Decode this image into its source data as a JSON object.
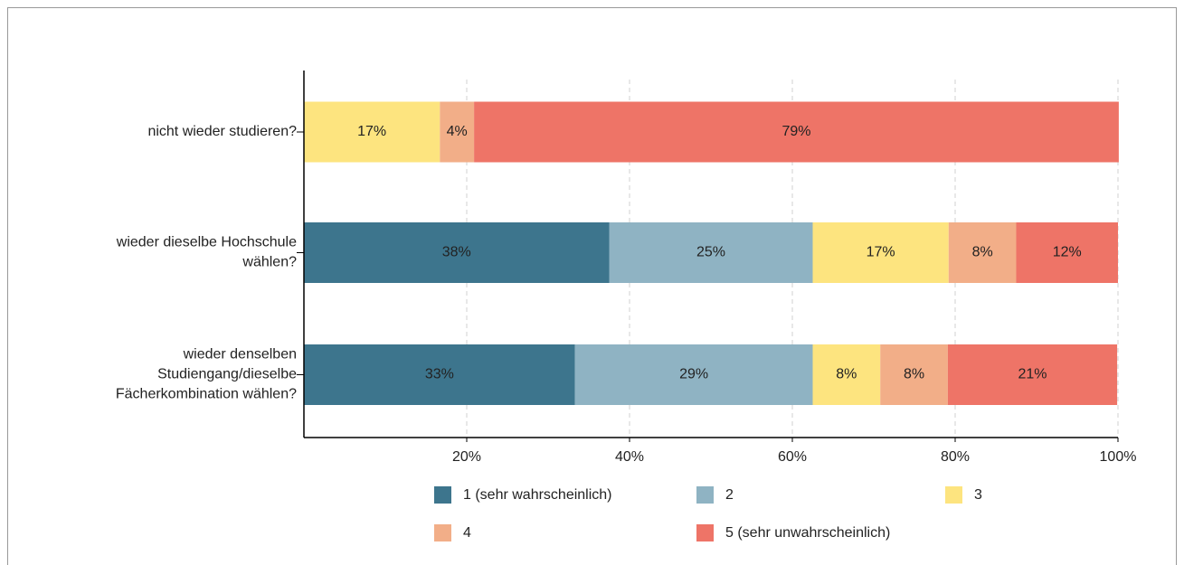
{
  "chart_data": {
    "type": "stacked_barh",
    "categories": [
      "nicht wieder studieren?",
      "wieder dieselbe Hochschule\nwählen?",
      "wieder denselben\nStudiengang/dieselbe\nFächerkombination wählen?"
    ],
    "series": [
      {
        "name": "1 (sehr wahrscheinlich)",
        "color": "#3d758d",
        "values": [
          0,
          37.5,
          33.3
        ],
        "value_labels": [
          null,
          "38%",
          "33%"
        ]
      },
      {
        "name": "2",
        "color": "#8fb3c3",
        "values": [
          0,
          25,
          29.2
        ],
        "value_labels": [
          null,
          "25%",
          "29%"
        ]
      },
      {
        "name": "3",
        "color": "#fde47f",
        "values": [
          16.7,
          16.7,
          8.3
        ],
        "value_labels": [
          "17%",
          "17%",
          "8%"
        ]
      },
      {
        "name": "4",
        "color": "#f2ae88",
        "values": [
          4.2,
          8.3,
          8.3
        ],
        "value_labels": [
          "4%",
          "8%",
          "8%"
        ]
      },
      {
        "name": "5 (sehr unwahrscheinlich)",
        "color": "#ee7467",
        "values": [
          79.2,
          12.5,
          20.8
        ],
        "value_labels": [
          "79%",
          "12%",
          "21%"
        ]
      }
    ],
    "xlim": [
      0,
      100
    ],
    "xticks": [
      {
        "value": 20,
        "label": "20%"
      },
      {
        "value": 40,
        "label": "40%"
      },
      {
        "value": 60,
        "label": "60%"
      },
      {
        "value": 80,
        "label": "80%"
      },
      {
        "value": 100,
        "label": "100%"
      }
    ],
    "grid": true,
    "legend": "bottom"
  }
}
